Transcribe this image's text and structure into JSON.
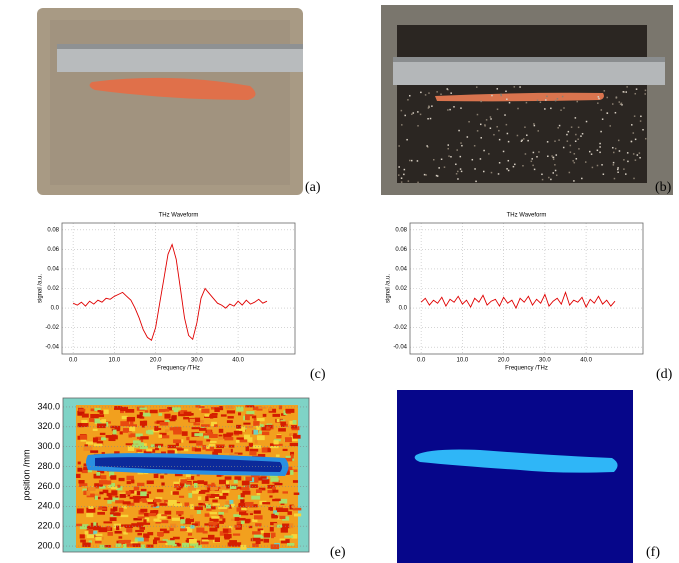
{
  "panels": {
    "a": "(a)",
    "b": "(b)",
    "c": "(c)",
    "d": "(d)",
    "e": "(e)",
    "f": "(f)"
  },
  "chart_data": [
    {
      "type": "line",
      "title": "THz Waveform",
      "x_label": "Frequency /THz",
      "y_label": "signal /a.u.",
      "color": "#e00000",
      "grid": true,
      "x": [
        0,
        1,
        2,
        3,
        4,
        5,
        6,
        7,
        8,
        9,
        10,
        11,
        12,
        13,
        14,
        15,
        16,
        17,
        18,
        19,
        20,
        21,
        22,
        23,
        24,
        25,
        26,
        27,
        28,
        29,
        30,
        31,
        32,
        33,
        34,
        35,
        36,
        37,
        38,
        39,
        40,
        41,
        42,
        43,
        44,
        45,
        46,
        47
      ],
      "values": [
        0.005,
        0.003,
        0.006,
        0.002,
        0.007,
        0.004,
        0.008,
        0.006,
        0.01,
        0.009,
        0.012,
        0.014,
        0.016,
        0.012,
        0.008,
        0.0,
        -0.01,
        -0.022,
        -0.03,
        -0.033,
        -0.02,
        0.005,
        0.03,
        0.055,
        0.065,
        0.05,
        0.02,
        -0.01,
        -0.028,
        -0.032,
        -0.015,
        0.01,
        0.02,
        0.015,
        0.01,
        0.005,
        0.003,
        0.0,
        0.004,
        0.002,
        0.007,
        0.003,
        0.008,
        0.004,
        0.006,
        0.009,
        0.005,
        0.007
      ],
      "xlim": [
        -2.7,
        53.8
      ],
      "ylim": [
        -0.047,
        0.087
      ],
      "xticks": [
        {
          "value": 0,
          "label": "0.0"
        },
        {
          "value": 10,
          "label": "10.0"
        },
        {
          "value": 20,
          "label": "20.0"
        },
        {
          "value": 30,
          "label": "30.0"
        },
        {
          "value": 40,
          "label": "40.0"
        }
      ],
      "yticks": [
        0.08,
        0.06,
        0.04,
        0.02,
        {
          "value": 0,
          "label": "0.0"
        },
        -0.02,
        -0.04
      ]
    },
    {
      "type": "line",
      "title": "THz Waveform",
      "x_label": "Frequency /THz",
      "y_label": "signal /a.u.",
      "color": "#e00000",
      "grid": true,
      "x": [
        0,
        1,
        2,
        3,
        4,
        5,
        6,
        7,
        8,
        9,
        10,
        11,
        12,
        13,
        14,
        15,
        16,
        17,
        18,
        19,
        20,
        21,
        22,
        23,
        24,
        25,
        26,
        27,
        28,
        29,
        30,
        31,
        32,
        33,
        34,
        35,
        36,
        37,
        38,
        39,
        40,
        41,
        42,
        43,
        44,
        45,
        46,
        47
      ],
      "values": [
        0.006,
        0.01,
        0.003,
        0.008,
        0.005,
        0.011,
        0.002,
        0.009,
        0.006,
        0.012,
        0.004,
        0.008,
        0.001,
        0.01,
        0.006,
        0.013,
        0.003,
        0.007,
        0.009,
        0.002,
        0.011,
        0.005,
        0.008,
        0.0,
        0.01,
        0.006,
        0.012,
        0.003,
        0.009,
        0.005,
        0.014,
        0.002,
        0.007,
        0.01,
        0.004,
        0.016,
        0.003,
        0.008,
        0.006,
        0.011,
        0.001,
        0.009,
        0.005,
        0.012,
        0.004,
        0.008,
        0.002,
        0.007
      ],
      "xlim": [
        -2.7,
        53.8
      ],
      "ylim": [
        -0.047,
        0.087
      ],
      "xticks": [
        {
          "value": 0,
          "label": "0.0"
        },
        {
          "value": 10,
          "label": "10.0"
        },
        {
          "value": 20,
          "label": "20.0"
        },
        {
          "value": 30,
          "label": "30.0"
        },
        {
          "value": 40,
          "label": "40.0"
        }
      ],
      "yticks": [
        0.08,
        0.06,
        0.04,
        0.02,
        {
          "value": 0,
          "label": "0.0"
        },
        -0.02,
        -0.04
      ]
    },
    {
      "type": "heatmap",
      "y_label": "position /mm",
      "grid": true,
      "ylim": [
        194,
        349
      ],
      "yticks": [
        {
          "value": 200,
          "label": "200.0"
        },
        {
          "value": 220,
          "label": "220.0"
        },
        {
          "value": 240,
          "label": "240.0"
        },
        {
          "value": 260,
          "label": "260.0"
        },
        {
          "value": 280,
          "label": "280.0"
        },
        {
          "value": 300,
          "label": "300.0"
        },
        {
          "value": 320,
          "label": "320.0"
        },
        {
          "value": 340,
          "label": "340.0"
        }
      ]
    }
  ]
}
